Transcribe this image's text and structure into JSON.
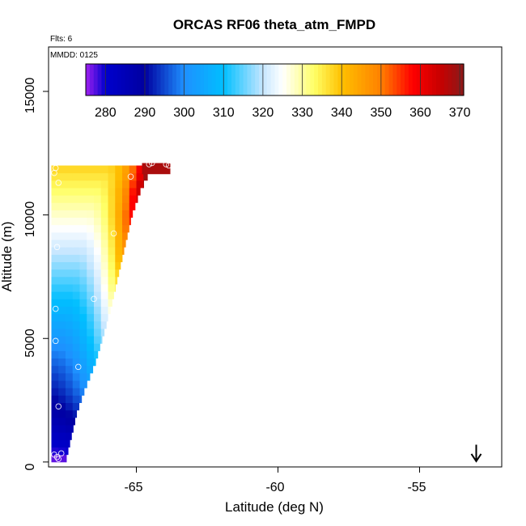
{
  "chart_data": {
    "type": "heatmap",
    "title": "ORCAS RF06 theta_atm_FMPD",
    "subtitle_lines": [
      "Flts: 6",
      "MMDD: 0125"
    ],
    "xlabel": "Latitude (deg N)",
    "ylabel": "Altitude (m)",
    "xlim": [
      -68.1,
      -52.1
    ],
    "ylim": [
      -200,
      16800
    ],
    "x_ticks": [
      -65,
      -60,
      -55
    ],
    "x_tick_labels": [
      "-65",
      "-60",
      "-55"
    ],
    "y_ticks": [
      0,
      5000,
      10000,
      15000
    ],
    "y_tick_labels": [
      "0",
      "5000",
      "10000",
      "15000"
    ],
    "colorbar": {
      "label_values": [
        280,
        290,
        300,
        310,
        320,
        330,
        340,
        350,
        360,
        370
      ],
      "range": [
        275,
        371
      ],
      "stops": [
        {
          "v": 275,
          "c": "#a020f0"
        },
        {
          "v": 280,
          "c": "#0000cd"
        },
        {
          "v": 290,
          "c": "#0000a0"
        },
        {
          "v": 300,
          "c": "#1e90ff"
        },
        {
          "v": 310,
          "c": "#00bfff"
        },
        {
          "v": 320,
          "c": "#c6e6ff"
        },
        {
          "v": 325,
          "c": "#ffffff"
        },
        {
          "v": 333,
          "c": "#ffff66"
        },
        {
          "v": 340,
          "c": "#ffc000"
        },
        {
          "v": 350,
          "c": "#ff8000"
        },
        {
          "v": 358,
          "c": "#ff0000"
        },
        {
          "v": 365,
          "c": "#c80000"
        },
        {
          "v": 371,
          "c": "#8b1a1a"
        }
      ]
    },
    "wedge": {
      "lat_start": -68.0,
      "alt_max": 12000,
      "alt_step": 300,
      "lat_step": 0.25,
      "edge_points": [
        {
          "alt": 0,
          "lat": -67.5
        },
        {
          "alt": 1000,
          "lat": -67.3
        },
        {
          "alt": 2000,
          "lat": -67.1
        },
        {
          "alt": 3000,
          "lat": -66.8
        },
        {
          "alt": 4000,
          "lat": -66.45
        },
        {
          "alt": 5000,
          "lat": -66.2
        },
        {
          "alt": 6000,
          "lat": -65.95
        },
        {
          "alt": 7000,
          "lat": -65.75
        },
        {
          "alt": 8000,
          "lat": -65.55
        },
        {
          "alt": 9000,
          "lat": -65.35
        },
        {
          "alt": 10000,
          "lat": -65.15
        },
        {
          "alt": 11000,
          "lat": -64.85
        },
        {
          "alt": 11800,
          "lat": -64.5
        },
        {
          "alt": 12000,
          "lat": -64.5
        }
      ],
      "cap": {
        "lat_from": -64.8,
        "lat_to": -63.8,
        "alt_from": 11650,
        "alt_to": 12100,
        "value": 368
      }
    },
    "flight_points": [
      {
        "lat": -67.85,
        "alt": 11900
      },
      {
        "lat": -67.9,
        "alt": 11700
      },
      {
        "lat": -67.75,
        "alt": 11300
      },
      {
        "lat": -67.8,
        "alt": 8700
      },
      {
        "lat": -67.85,
        "alt": 6200
      },
      {
        "lat": -67.85,
        "alt": 4900
      },
      {
        "lat": -67.75,
        "alt": 2250
      },
      {
        "lat": -67.05,
        "alt": 3850
      },
      {
        "lat": -66.5,
        "alt": 6600
      },
      {
        "lat": -65.8,
        "alt": 9250
      },
      {
        "lat": -65.2,
        "alt": 11550
      },
      {
        "lat": -64.55,
        "alt": 12050
      },
      {
        "lat": -64.45,
        "alt": 12100
      },
      {
        "lat": -63.95,
        "alt": 12050
      },
      {
        "lat": -63.85,
        "alt": 12000
      },
      {
        "lat": -67.8,
        "alt": 200
      },
      {
        "lat": -67.65,
        "alt": 350
      },
      {
        "lat": -67.9,
        "alt": 300
      },
      {
        "lat": -67.75,
        "alt": 120
      }
    ],
    "marker": {
      "lat": -53.0,
      "alt_top": 700,
      "alt_bottom": 0,
      "shape": "down-arrow"
    }
  }
}
